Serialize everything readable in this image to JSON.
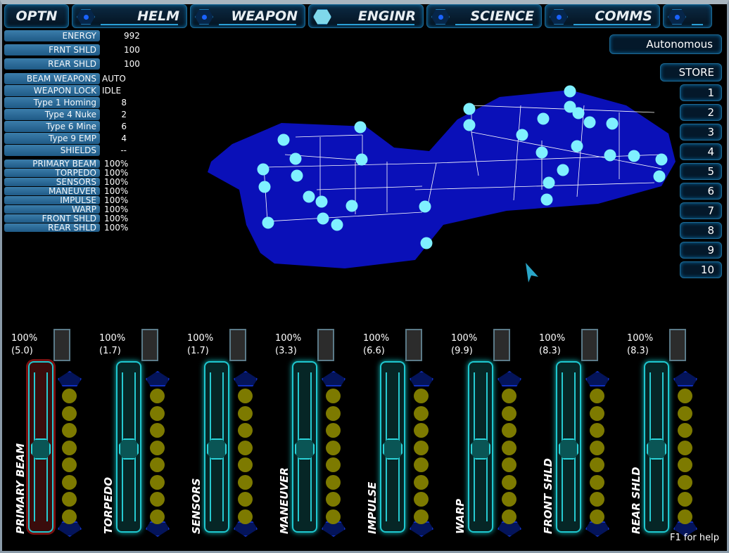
{
  "tabs": [
    {
      "label": "OPTN"
    },
    {
      "label": "HELM"
    },
    {
      "label": "WEAPON"
    },
    {
      "label": "ENGINR",
      "active": true
    },
    {
      "label": "SCIENCE"
    },
    {
      "label": "COMMS"
    },
    {
      "label": ""
    }
  ],
  "status": [
    {
      "label": "ENERGY",
      "value": "992"
    },
    {
      "label": "FRNT SHLD",
      "value": "100"
    },
    {
      "label": "REAR SHLD",
      "value": "100"
    }
  ],
  "weapons": [
    {
      "label": "BEAM WEAPONS",
      "value": "AUTO"
    },
    {
      "label": "WEAPON LOCK",
      "value": "IDLE"
    },
    {
      "label": "Type 1 Homing",
      "value": "8"
    },
    {
      "label": "Type 4 Nuke",
      "value": "2"
    },
    {
      "label": "Type 6 Mine",
      "value": "6"
    },
    {
      "label": "Type 9 EMP",
      "value": "4"
    },
    {
      "label": "SHIELDS",
      "value": "--"
    }
  ],
  "health": [
    {
      "label": "PRIMARY BEAM",
      "value": "100%"
    },
    {
      "label": "TORPEDO",
      "value": "100%"
    },
    {
      "label": "SENSORS",
      "value": "100%"
    },
    {
      "label": "MANEUVER",
      "value": "100%"
    },
    {
      "label": "IMPULSE",
      "value": "100%"
    },
    {
      "label": "WARP",
      "value": "100%"
    },
    {
      "label": "FRONT SHLD",
      "value": "100%"
    },
    {
      "label": "REAR SHLD",
      "value": "100%"
    }
  ],
  "autonomous_label": "Autonomous",
  "store_label": "STORE",
  "presets": [
    "1",
    "2",
    "3",
    "4",
    "5",
    "6",
    "7",
    "8",
    "9",
    "10"
  ],
  "systems": [
    {
      "name": "PRIMARY BEAM",
      "power": "100%",
      "heat": "(5.0)",
      "power_level": 100,
      "coolant": 0,
      "selected": true
    },
    {
      "name": "TORPEDO",
      "power": "100%",
      "heat": "(1.7)",
      "power_level": 100,
      "coolant": 0
    },
    {
      "name": "SENSORS",
      "power": "100%",
      "heat": "(1.7)",
      "power_level": 100,
      "coolant": 0
    },
    {
      "name": "MANEUVER",
      "power": "100%",
      "heat": "(3.3)",
      "power_level": 100,
      "coolant": 0
    },
    {
      "name": "IMPULSE",
      "power": "100%",
      "heat": "(6.6)",
      "power_level": 100,
      "coolant": 0
    },
    {
      "name": "WARP",
      "power": "100%",
      "heat": "(9.9)",
      "power_level": 100,
      "coolant": 0
    },
    {
      "name": "FRONT SHLD",
      "power": "100%",
      "heat": "(8.3)",
      "power_level": 100,
      "coolant": 0
    },
    {
      "name": "REAR SHLD",
      "power": "100%",
      "heat": "(8.3)",
      "power_level": 100,
      "coolant": 0
    }
  ],
  "help_text": "F1 for help",
  "colors": {
    "hull": "#0a10b8",
    "node": "#7ff0ff",
    "coolant_empty": "#7d7a00",
    "accent": "#1fc7cf"
  }
}
